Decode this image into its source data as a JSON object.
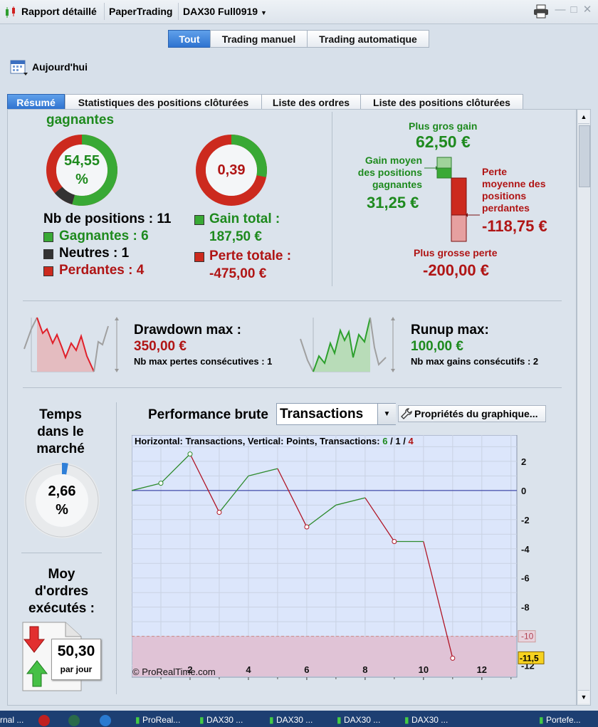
{
  "titlebar": {
    "report": "Rapport détaillé",
    "account": "PaperTrading",
    "strategy": "DAX30 Full0919"
  },
  "filters": {
    "segments": [
      "Tout",
      "Trading manuel",
      "Trading automatique"
    ],
    "date": "Aujourd'hui"
  },
  "tabs": [
    "Résumé",
    "Statistiques des positions clôturées",
    "Liste des ordres",
    "Liste des positions clôturées"
  ],
  "summary": {
    "winners_heading": "gagnantes",
    "win_rate": "54,55",
    "win_rate_unit": "%",
    "ratio": "0,39",
    "positions": "Nb de positions : 11",
    "gagnantes": "Gagnantes : 6",
    "neutres": "Neutres : 1",
    "perdantes": "Perdantes : 4",
    "gain_label": "Gain total :",
    "gain_value": "187,50 €",
    "loss_label": "Perte totale :",
    "loss_value": "-475,00 €",
    "colors": {
      "win": "#39a935",
      "loss": "#cc2a1e",
      "neutral": "#333333"
    }
  },
  "extremes": {
    "best_label": "Plus gros gain",
    "best_value": "62,50 €",
    "avg_win_label_1": "Gain moyen",
    "avg_win_label_2": "des positions",
    "avg_win_label_3": "gagnantes",
    "avg_win_value": "31,25 €",
    "avg_loss_label_1": "Perte",
    "avg_loss_label_2": "moyenne des",
    "avg_loss_label_3": "positions",
    "avg_loss_label_4": "perdantes",
    "avg_loss_value": "-118,75 €",
    "worst_label": "Plus grosse perte",
    "worst_value": "-200,00 €"
  },
  "drawdown": {
    "label": "Drawdown max :",
    "value": "350,00 €",
    "sub": "Nb max pertes consécutives : 1"
  },
  "runup": {
    "label": "Runup max:",
    "value": "100,00 €",
    "sub": "Nb max gains consécutifs : 2"
  },
  "market_time": {
    "label_1": "Temps",
    "label_2": "dans le",
    "label_3": "marché",
    "value": "2,66",
    "unit": "%"
  },
  "orders": {
    "label_1": "Moy",
    "label_2": "d'ordres",
    "label_3": "exécutés :",
    "value": "50,30",
    "unit": "par jour"
  },
  "performance": {
    "title": "Performance brute",
    "select_value": "Transactions",
    "props_button": "Propriétés du graphique...",
    "info_prefix": "Horizontal: Transactions, Vertical: Points, Transactions:",
    "info_win": "6",
    "info_neutral": "1",
    "info_loss": "4",
    "sep": "/",
    "copyright": "© ProRealTime.com"
  },
  "taskbar": {
    "items": [
      "rnal ...",
      "ProReal...",
      "DAX30 ...",
      "DAX30 ...",
      "DAX30 ...",
      "DAX30 ...",
      "Portefe..."
    ]
  },
  "chart_data": {
    "type": "line",
    "x": [
      0,
      1,
      2,
      3,
      4,
      5,
      6,
      7,
      8,
      9,
      10,
      11
    ],
    "y": [
      0,
      0.5,
      2.5,
      -1.5,
      1,
      1.5,
      -2.5,
      -1,
      -0.5,
      -3.5,
      -3.5,
      -11.5
    ],
    "xlabel": "Transactions",
    "ylabel": "Points",
    "xticks": [
      2,
      4,
      6,
      8,
      10,
      12
    ],
    "yticks": [
      2,
      0,
      -2,
      -4,
      -6,
      -8,
      -10,
      -12
    ],
    "xlim": [
      0,
      13.2
    ],
    "ylim": [
      -12.8,
      3.8
    ],
    "threshold": -10,
    "threshold_label": "-10",
    "last_label": "-11,5",
    "up_color": "#2e8b2e",
    "down_color": "#b01525"
  }
}
